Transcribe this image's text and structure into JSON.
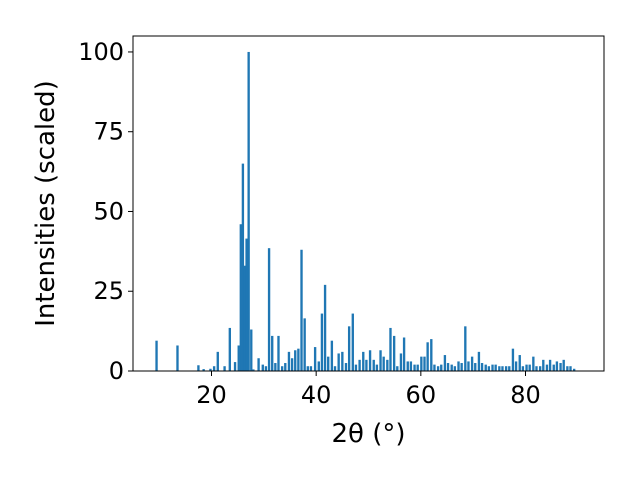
{
  "chart_data": {
    "type": "bar",
    "xlabel": "2θ (°)",
    "ylabel": "Intensities (scaled)",
    "xlim": [
      5,
      95
    ],
    "ylim": [
      0,
      105
    ],
    "xticks": [
      20,
      40,
      60,
      80
    ],
    "yticks": [
      0,
      25,
      50,
      75,
      100
    ],
    "grid": false,
    "bar_color": "#1f77b4",
    "bar_width": 0.45,
    "x": [
      9.5,
      13.5,
      17.5,
      18.5,
      19.8,
      20.5,
      21.2,
      22.5,
      23.5,
      24.5,
      25.2,
      25.6,
      26.0,
      26.3,
      26.7,
      27.1,
      27.6,
      28.0,
      29.0,
      29.8,
      30.4,
      31.0,
      31.6,
      32.2,
      32.8,
      33.5,
      34.1,
      34.8,
      35.4,
      36.0,
      36.6,
      37.2,
      37.8,
      38.4,
      39.0,
      39.8,
      40.5,
      41.1,
      41.7,
      42.3,
      43.0,
      43.6,
      44.3,
      45.0,
      45.7,
      46.3,
      47.0,
      47.6,
      48.3,
      49.0,
      49.6,
      50.3,
      51.0,
      51.6,
      52.3,
      52.9,
      53.6,
      54.2,
      54.9,
      55.5,
      56.2,
      56.8,
      57.5,
      58.1,
      58.8,
      59.4,
      60.1,
      60.7,
      61.3,
      62.0,
      62.6,
      63.3,
      63.9,
      64.6,
      65.2,
      65.9,
      66.5,
      67.2,
      67.8,
      68.5,
      69.1,
      69.8,
      70.4,
      71.1,
      71.7,
      72.4,
      73.0,
      73.7,
      74.3,
      75.0,
      75.6,
      76.3,
      76.9,
      77.6,
      78.2,
      78.9,
      79.5,
      80.2,
      80.8,
      81.5,
      82.1,
      82.8,
      83.4,
      84.1,
      84.7,
      85.4,
      86.0,
      86.7,
      87.3,
      88.0,
      88.6,
      89.3
    ],
    "values": [
      9.5,
      8,
      1.8,
      0.6,
      0.7,
      1.5,
      6,
      1.5,
      13.5,
      2.8,
      8,
      46,
      65,
      33,
      41.5,
      100,
      13,
      0.5,
      4,
      2,
      1.5,
      38.5,
      11,
      2.5,
      11,
      1.5,
      2.5,
      6,
      4,
      6.5,
      7,
      38,
      16.5,
      1.5,
      1.5,
      7.5,
      3,
      18,
      27,
      4.5,
      9.5,
      1.5,
      5.5,
      6,
      2.5,
      14,
      18,
      2,
      3.5,
      6,
      3.5,
      6.5,
      3.5,
      2,
      6.5,
      4.5,
      3.5,
      13.5,
      11,
      1.5,
      5.5,
      10.5,
      3,
      3,
      2,
      2,
      4.5,
      4.5,
      9,
      10,
      2,
      1.5,
      2,
      5,
      2.5,
      2,
      1.5,
      3,
      2.5,
      14,
      3,
      4.5,
      2.5,
      6,
      2.5,
      2,
      1.5,
      2,
      2,
      1.5,
      1.5,
      1.5,
      1.5,
      7,
      3,
      5,
      1.5,
      2,
      2,
      4.5,
      1.5,
      1.5,
      3.5,
      2,
      3.5,
      2,
      3,
      2.5,
      3.5,
      1.5,
      1.5,
      0.7
    ]
  }
}
